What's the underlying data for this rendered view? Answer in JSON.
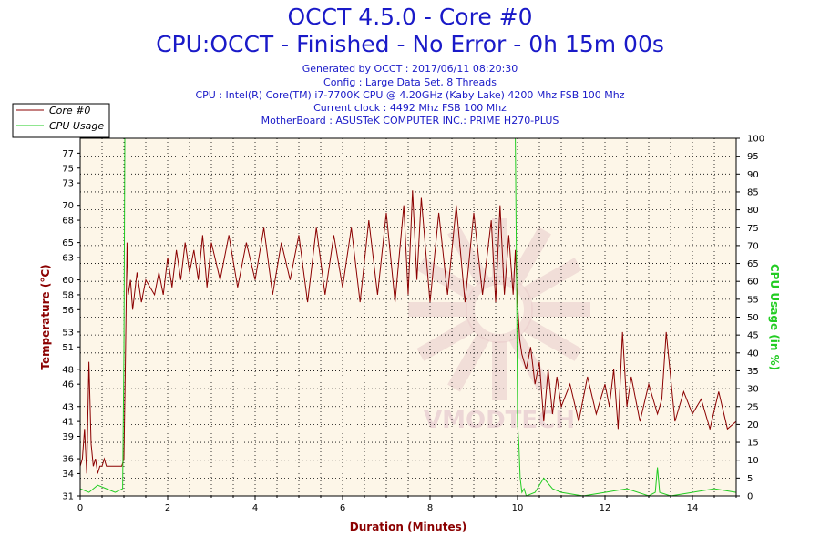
{
  "header": {
    "title": "OCCT 4.5.0 - Core #0",
    "subtitle": "CPU:OCCT - Finished - No Error - 0h 15m 00s",
    "info": [
      "Generated by OCCT : 2017/06/11 08:20:30",
      "Config : Large Data Set, 8 Threads",
      "CPU : Intel(R) Core(TM) i7-7700K CPU @ 4.20GHz (Kaby Lake) 4200 Mhz FSB 100 Mhz",
      "Current clock : 4492 Mhz FSB 100 Mhz",
      "MotherBoard : ASUSTeK COMPUTER INC.: PRIME H270-PLUS"
    ]
  },
  "chart_data": {
    "type": "line",
    "xlabel": "Duration (Minutes)",
    "ylabel": "Temperature (°C)",
    "y2label": "CPU Usage (in %)",
    "xlim": [
      0,
      15
    ],
    "ylim": [
      31,
      79
    ],
    "y2lim": [
      0,
      100
    ],
    "x_ticks": [
      "0",
      "2",
      "4",
      "6",
      "8",
      "10",
      "12",
      "14"
    ],
    "y_ticks": [
      31,
      34,
      36,
      39,
      41,
      43,
      46,
      48,
      51,
      53,
      56,
      58,
      60,
      63,
      65,
      68,
      70,
      73,
      75,
      77
    ],
    "y2_ticks": [
      0,
      5,
      10,
      15,
      20,
      25,
      30,
      35,
      40,
      45,
      50,
      55,
      60,
      65,
      70,
      75,
      80,
      85,
      90,
      95,
      100
    ],
    "grid": true,
    "legend_position": "top-left",
    "watermark": "VMODTECH",
    "colors": {
      "temperature": "#8b0000",
      "usage": "#22cc22",
      "title": "#1a1ac8",
      "plot_bg": "#fdf6e8"
    },
    "series": [
      {
        "name": "Core #0",
        "axis": "left",
        "color": "#8b0000",
        "x": [
          0,
          0.05,
          0.1,
          0.15,
          0.2,
          0.25,
          0.3,
          0.35,
          0.4,
          0.45,
          0.5,
          0.55,
          0.6,
          0.7,
          0.8,
          0.9,
          0.95,
          1.0,
          1.03,
          1.07,
          1.1,
          1.15,
          1.2,
          1.3,
          1.4,
          1.5,
          1.6,
          1.7,
          1.8,
          1.9,
          2.0,
          2.1,
          2.2,
          2.3,
          2.4,
          2.5,
          2.6,
          2.7,
          2.8,
          2.9,
          3.0,
          3.2,
          3.4,
          3.6,
          3.8,
          4.0,
          4.2,
          4.4,
          4.6,
          4.8,
          5.0,
          5.2,
          5.4,
          5.6,
          5.8,
          6.0,
          6.2,
          6.4,
          6.6,
          6.8,
          7.0,
          7.2,
          7.4,
          7.5,
          7.6,
          7.7,
          7.8,
          8.0,
          8.2,
          8.4,
          8.6,
          8.8,
          9.0,
          9.2,
          9.4,
          9.5,
          9.6,
          9.7,
          9.8,
          9.9,
          9.95,
          10.0,
          10.05,
          10.1,
          10.2,
          10.3,
          10.4,
          10.5,
          10.6,
          10.7,
          10.8,
          10.9,
          11.0,
          11.2,
          11.4,
          11.6,
          11.8,
          12.0,
          12.1,
          12.2,
          12.3,
          12.4,
          12.5,
          12.6,
          12.8,
          13.0,
          13.2,
          13.3,
          13.4,
          13.6,
          13.8,
          14.0,
          14.2,
          14.4,
          14.6,
          14.8,
          15.0
        ],
        "values": [
          35,
          36,
          40,
          34,
          49,
          38,
          35,
          36,
          34,
          35,
          35,
          36,
          35,
          35,
          35,
          35,
          35,
          36,
          47,
          65,
          58,
          60,
          56,
          61,
          57,
          60,
          59,
          58,
          61,
          58,
          63,
          59,
          64,
          60,
          65,
          61,
          64,
          60,
          66,
          59,
          65,
          60,
          66,
          59,
          65,
          60,
          67,
          58,
          65,
          60,
          66,
          57,
          67,
          58,
          66,
          59,
          67,
          57,
          68,
          58,
          69,
          57,
          70,
          58,
          72,
          60,
          71,
          57,
          69,
          58,
          70,
          57,
          69,
          58,
          68,
          57,
          70,
          58,
          66,
          58,
          64,
          57,
          52,
          50,
          48,
          51,
          46,
          49,
          41,
          48,
          42,
          47,
          43,
          46,
          41,
          47,
          42,
          46,
          43,
          48,
          40,
          53,
          43,
          47,
          41,
          46,
          42,
          44,
          53,
          41,
          45,
          42,
          44,
          40,
          45,
          40,
          41
        ]
      },
      {
        "name": "CPU Usage",
        "axis": "right",
        "color": "#22cc22",
        "x": [
          0,
          0.2,
          0.4,
          0.6,
          0.8,
          0.97,
          1.0,
          1.02,
          2.0,
          4.0,
          6.0,
          8.0,
          9.95,
          9.98,
          10.0,
          10.03,
          10.06,
          10.1,
          10.15,
          10.2,
          10.4,
          10.6,
          10.8,
          11.0,
          11.5,
          12.0,
          12.5,
          13.0,
          13.15,
          13.2,
          13.25,
          13.5,
          14.0,
          14.5,
          15.0
        ],
        "values": [
          2,
          1,
          3,
          2,
          1,
          2,
          40,
          100,
          100,
          100,
          100,
          100,
          100,
          60,
          20,
          15,
          5,
          1,
          2,
          0,
          1,
          5,
          2,
          1,
          0,
          1,
          2,
          0,
          1,
          8,
          1,
          0,
          1,
          2,
          1
        ]
      }
    ]
  }
}
